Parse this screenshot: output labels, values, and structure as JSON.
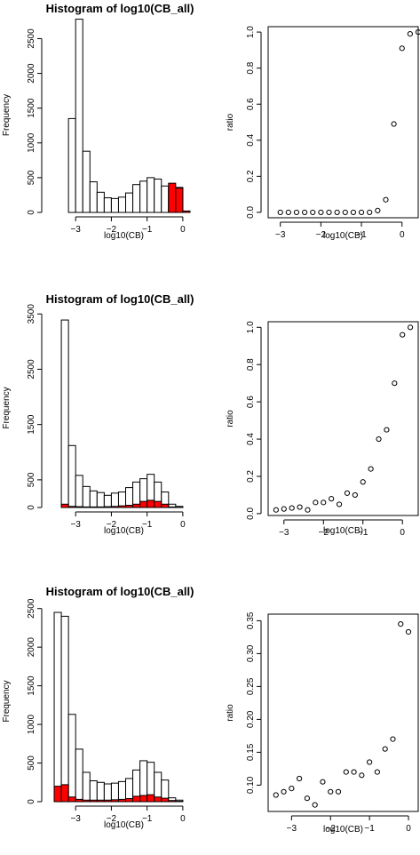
{
  "colors": {
    "highlight": "#ff0000",
    "bar": "#ffffff",
    "stroke": "#000000"
  },
  "chart_data": [
    {
      "type": "bar",
      "title": "Histogram of log10(CB_all)",
      "xlabel": "log10(CB)",
      "ylabel": "Frequency",
      "xlim": [
        -3.75,
        0.45
      ],
      "ylim": [
        0,
        2800
      ],
      "xticks": [
        -3,
        -2,
        -1,
        0
      ],
      "yticks": [
        0,
        500,
        1000,
        1500,
        2000,
        2500
      ],
      "bin_width": 0.2,
      "bin_start": -3.2,
      "series": [
        {
          "values": [
            1350,
            2780,
            880,
            440,
            290,
            210,
            200,
            220,
            280,
            400,
            450,
            500,
            480,
            380,
            350,
            360,
            20
          ]
        },
        {
          "values": [
            0,
            0,
            0,
            0,
            0,
            0,
            0,
            0,
            0,
            0,
            0,
            0,
            0,
            0,
            420,
            350,
            20
          ],
          "highlight": true
        }
      ]
    },
    {
      "type": "scatter",
      "xlabel": "log10(CB)",
      "ylabel": "ratio",
      "xlim": [
        -3.3,
        0.4
      ],
      "ylim": [
        -0.03,
        1.03
      ],
      "xticks": [
        -3,
        -2,
        -1,
        0
      ],
      "yticks": [
        0.0,
        0.2,
        0.4,
        0.6,
        0.8,
        1.0
      ],
      "yticklabels": [
        "0.0",
        "0.2",
        "0.4",
        "0.6",
        "0.8",
        "1.0"
      ],
      "x": [
        -3.0,
        -2.8,
        -2.6,
        -2.4,
        -2.2,
        -2.0,
        -1.8,
        -1.6,
        -1.4,
        -1.2,
        -1.0,
        -0.8,
        -0.6,
        -0.4,
        -0.2,
        0.0,
        0.2,
        0.4
      ],
      "y": [
        0.0,
        0.0,
        0.0,
        0.0,
        0.0,
        0.0,
        0.0,
        0.0,
        0.0,
        0.0,
        0.0,
        0.0,
        0.01,
        0.07,
        0.49,
        0.91,
        0.99,
        1.0
      ]
    },
    {
      "type": "bar",
      "title": "Histogram of log10(CB_all)",
      "xlabel": "log10(CB)",
      "ylabel": "Frequency",
      "xlim": [
        -3.75,
        0.45
      ],
      "ylim": [
        0,
        3600
      ],
      "xticks": [
        -3,
        -2,
        -1,
        0
      ],
      "yticks": [
        0,
        500,
        1500,
        2500,
        3500
      ],
      "bin_width": 0.2,
      "bin_start": -3.4,
      "series": [
        {
          "values": [
            3390,
            1120,
            580,
            380,
            300,
            270,
            220,
            260,
            280,
            360,
            460,
            520,
            600,
            460,
            280,
            60,
            20
          ]
        },
        {
          "values": [
            60,
            20,
            15,
            10,
            10,
            10,
            15,
            20,
            30,
            40,
            60,
            110,
            130,
            110,
            60,
            10,
            5
          ],
          "highlight": true
        }
      ]
    },
    {
      "type": "scatter",
      "xlabel": "log10(CB)",
      "ylabel": "ratio",
      "xlim": [
        -3.4,
        0.4
      ],
      "ylim": [
        -0.01,
        1.03
      ],
      "xticks": [
        -3,
        -2,
        -1,
        0
      ],
      "yticks": [
        0.0,
        0.2,
        0.4,
        0.6,
        0.8,
        1.0
      ],
      "yticklabels": [
        "0.0",
        "0.2",
        "0.4",
        "0.6",
        "0.8",
        "1.0"
      ],
      "x": [
        -3.2,
        -3.0,
        -2.8,
        -2.6,
        -2.4,
        -2.2,
        -2.0,
        -1.8,
        -1.6,
        -1.4,
        -1.2,
        -1.0,
        -0.8,
        -0.6,
        -0.4,
        -0.2,
        0.0,
        0.2
      ],
      "y": [
        0.02,
        0.025,
        0.03,
        0.035,
        0.02,
        0.06,
        0.06,
        0.08,
        0.05,
        0.11,
        0.1,
        0.17,
        0.24,
        0.4,
        0.45,
        0.7,
        0.96,
        1.0
      ]
    },
    {
      "type": "bar",
      "title": "Histogram of log10(CB_all)",
      "xlabel": "log10(CB)",
      "ylabel": "Frequency",
      "xlim": [
        -3.75,
        0.45
      ],
      "ylim": [
        0,
        2600
      ],
      "xticks": [
        -3,
        -2,
        -1,
        0
      ],
      "yticks": [
        0,
        500,
        1000,
        1500,
        2000,
        2500
      ],
      "bin_width": 0.2,
      "bin_start": -3.6,
      "series": [
        {
          "values": [
            2450,
            2400,
            1130,
            680,
            380,
            270,
            250,
            230,
            240,
            260,
            300,
            410,
            530,
            510,
            380,
            280,
            50,
            20
          ]
        },
        {
          "values": [
            200,
            220,
            60,
            30,
            20,
            20,
            20,
            20,
            25,
            30,
            40,
            70,
            80,
            90,
            60,
            45,
            15,
            5
          ],
          "highlight": true
        }
      ]
    },
    {
      "type": "scatter",
      "xlabel": "log10(CB)",
      "ylabel": "ratio",
      "xlim": [
        -3.6,
        0.25
      ],
      "ylim": [
        0.06,
        0.36
      ],
      "xticks": [
        -3,
        -2,
        -1,
        0
      ],
      "yticks": [
        0.1,
        0.15,
        0.2,
        0.25,
        0.3,
        0.35
      ],
      "yticklabels": [
        "0.10",
        "0.15",
        "0.20",
        "0.25",
        "0.30",
        "0.35"
      ],
      "x": [
        -3.4,
        -3.2,
        -3.0,
        -2.8,
        -2.6,
        -2.4,
        -2.2,
        -2.0,
        -1.8,
        -1.6,
        -1.4,
        -1.2,
        -1.0,
        -0.8,
        -0.6,
        -0.4,
        -0.2,
        0.0
      ],
      "y": [
        0.085,
        0.09,
        0.095,
        0.11,
        0.08,
        0.07,
        0.105,
        0.09,
        0.09,
        0.12,
        0.12,
        0.115,
        0.135,
        0.12,
        0.155,
        0.17,
        0.345,
        0.333
      ]
    }
  ]
}
